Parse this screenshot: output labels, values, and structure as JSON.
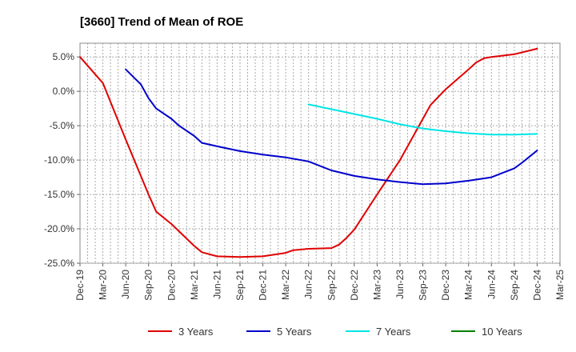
{
  "chart_data": {
    "type": "line",
    "title": "[3660]  Trend of Mean of ROE",
    "xlabel": "",
    "ylabel": "",
    "x_ticks": [
      "Dec-19",
      "Mar-20",
      "Jun-20",
      "Sep-20",
      "Dec-20",
      "Mar-21",
      "Jun-21",
      "Sep-21",
      "Dec-21",
      "Mar-22",
      "Jun-22",
      "Sep-22",
      "Dec-22",
      "Mar-23",
      "Jun-23",
      "Sep-23",
      "Dec-23",
      "Mar-24",
      "Jun-24",
      "Sep-24",
      "Dec-24",
      "Mar-25"
    ],
    "y_ticks": [
      5,
      0,
      -5,
      -10,
      -15,
      -20,
      -25
    ],
    "y_tick_labels": [
      "5.0%",
      "0.0%",
      "-5.0%",
      "-10.0%",
      "-15.0%",
      "-20.0%",
      "-25.0%"
    ],
    "ylim": [
      -25,
      7
    ],
    "grid": true,
    "legend_position": "bottom",
    "series": [
      {
        "name": "3 Years",
        "color": "#e00000",
        "x": [
          "Dec-19",
          "Mar-20",
          "Jun-20",
          "Sep-20",
          "Oct-20",
          "Dec-20",
          "Mar-21",
          "Apr-21",
          "Jun-21",
          "Sep-21",
          "Dec-21",
          "Mar-22",
          "Apr-22",
          "Jun-22",
          "Sep-22",
          "Oct-22",
          "Nov-22",
          "Dec-22",
          "Mar-23",
          "Jun-23",
          "Sep-23",
          "Oct-23",
          "Dec-23",
          "Mar-24",
          "Apr-24",
          "May-24",
          "Jun-24",
          "Sep-24",
          "Dec-24"
        ],
        "values": [
          5.0,
          1.2,
          -7.0,
          -15.0,
          -17.5,
          -19.3,
          -22.5,
          -23.4,
          -24.0,
          -24.1,
          -24.0,
          -23.5,
          -23.1,
          -22.9,
          -22.8,
          -22.3,
          -21.3,
          -20.1,
          -15.0,
          -10.0,
          -4.0,
          -2.0,
          0.3,
          3.2,
          4.2,
          4.8,
          5.0,
          5.4,
          6.2
        ]
      },
      {
        "name": "5 Years",
        "color": "#0000cc",
        "x": [
          "Jun-20",
          "Aug-20",
          "Sep-20",
          "Oct-20",
          "Dec-20",
          "Jan-21",
          "Mar-21",
          "Apr-21",
          "Jun-21",
          "Sep-21",
          "Dec-21",
          "Mar-22",
          "Jun-22",
          "Sep-22",
          "Dec-22",
          "Mar-23",
          "Jun-23",
          "Sep-23",
          "Dec-23",
          "Mar-24",
          "Jun-24",
          "Sep-24",
          "Oct-24",
          "Nov-24",
          "Dec-24"
        ],
        "values": [
          3.2,
          1.0,
          -1.0,
          -2.5,
          -4.0,
          -5.0,
          -6.5,
          -7.5,
          -8.0,
          -8.7,
          -9.2,
          -9.6,
          -10.2,
          -11.5,
          -12.3,
          -12.8,
          -13.2,
          -13.5,
          -13.4,
          -13.0,
          -12.5,
          -11.2,
          -10.4,
          -9.5,
          -8.6
        ]
      },
      {
        "name": "7 Years",
        "color": "#00e5e5",
        "x": [
          "Jun-22",
          "Sep-22",
          "Dec-22",
          "Mar-23",
          "Jun-23",
          "Sep-23",
          "Dec-23",
          "Mar-24",
          "Jun-24",
          "Sep-24",
          "Dec-24"
        ],
        "values": [
          -1.9,
          -2.6,
          -3.3,
          -4.0,
          -4.8,
          -5.4,
          -5.8,
          -6.1,
          -6.3,
          -6.3,
          -6.2
        ]
      },
      {
        "name": "10 Years",
        "color": "#008000",
        "x": [],
        "values": []
      }
    ]
  }
}
